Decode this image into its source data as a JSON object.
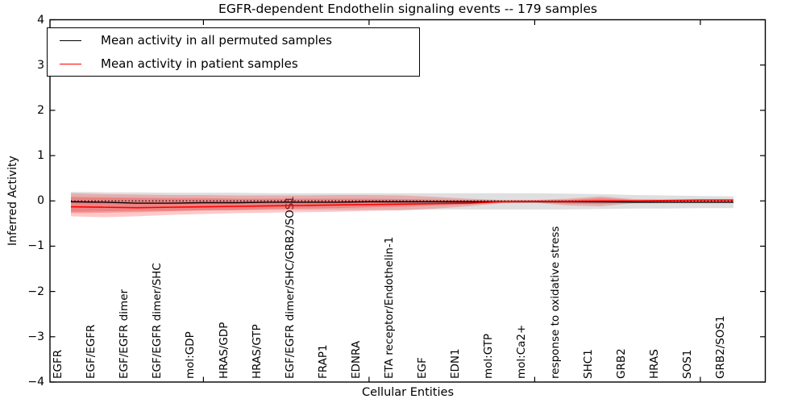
{
  "chart_data": {
    "type": "line",
    "title": "EGFR-dependent Endothelin signaling events -- 179 samples",
    "xlabel": "Cellular Entities",
    "ylabel": "Inferred Activity",
    "ylim": [
      -4,
      4
    ],
    "yticks": [
      -4,
      -3,
      -2,
      -1,
      0,
      1,
      2,
      3,
      4
    ],
    "grid": false,
    "legend_position": "upper-left",
    "xticks_shown_at": [
      4,
      9,
      14,
      19
    ],
    "categories": [
      "EGFR",
      "EGF/EGFR",
      "EGF/EGFR dimer",
      "EGF/EGFR dimer/SHC",
      "mol:GDP",
      "HRAS/GDP",
      "HRAS/GTP",
      "EGF/EGFR dimer/SHC/GRB2/SOS1",
      "FRAP1",
      "EDNRA",
      "ETA receptor/Endothelin-1",
      "EGF",
      "EDN1",
      "mol:GTP",
      "mol:Ca2+",
      "response to oxidative stress",
      "SHC1",
      "GRB2",
      "HRAS",
      "SOS1",
      "GRB2/SOS1"
    ],
    "series": [
      {
        "name": "Mean activity in all permuted samples",
        "color": "#000000",
        "values": [
          -0.02,
          -0.03,
          -0.05,
          -0.05,
          -0.04,
          -0.04,
          -0.03,
          -0.03,
          -0.03,
          -0.02,
          -0.02,
          -0.02,
          -0.02,
          -0.02,
          -0.02,
          -0.02,
          -0.02,
          -0.03,
          -0.03,
          -0.03,
          -0.03
        ]
      },
      {
        "name": "Mean activity in patient samples",
        "color": "#ff0000",
        "values": [
          -0.13,
          -0.14,
          -0.15,
          -0.14,
          -0.13,
          -0.12,
          -0.11,
          -0.1,
          -0.09,
          -0.08,
          -0.07,
          -0.06,
          -0.05,
          -0.02,
          -0.01,
          -0.01,
          0.0,
          0.0,
          0.01,
          0.02,
          0.02
        ]
      }
    ],
    "zero_line": {
      "y": 0,
      "style": "dotted",
      "color": "#000000"
    },
    "bands": [
      {
        "name": "permuted-samples-std",
        "color": "#8c8c8c",
        "opacity": 0.28,
        "upper": [
          0.2,
          0.19,
          0.19,
          0.18,
          0.18,
          0.18,
          0.17,
          0.17,
          0.17,
          0.17,
          0.17,
          0.17,
          0.17,
          0.17,
          0.17,
          0.16,
          0.15,
          0.13,
          0.12,
          0.11,
          0.1
        ],
        "lower": [
          -0.24,
          -0.23,
          -0.22,
          -0.22,
          -0.21,
          -0.21,
          -0.2,
          -0.2,
          -0.2,
          -0.2,
          -0.2,
          -0.19,
          -0.19,
          -0.19,
          -0.19,
          -0.19,
          -0.18,
          -0.17,
          -0.17,
          -0.16,
          -0.16
        ]
      },
      {
        "name": "patient-samples-std-outer",
        "color": "#ff0000",
        "opacity": 0.21,
        "upper": [
          0.17,
          0.15,
          0.14,
          0.13,
          0.13,
          0.12,
          0.12,
          0.12,
          0.13,
          0.13,
          0.12,
          0.09,
          0.05,
          0.02,
          0.02,
          0.05,
          0.1,
          0.04,
          0.03,
          0.03,
          0.03
        ],
        "lower": [
          -0.34,
          -0.36,
          -0.34,
          -0.31,
          -0.29,
          -0.27,
          -0.26,
          -0.25,
          -0.24,
          -0.22,
          -0.21,
          -0.17,
          -0.12,
          -0.05,
          -0.04,
          -0.1,
          -0.12,
          -0.05,
          -0.04,
          -0.04,
          -0.04
        ]
      },
      {
        "name": "patient-samples-std-inner",
        "color": "#ff0000",
        "opacity": 0.24,
        "upper": [
          0.09,
          0.08,
          0.07,
          0.06,
          0.06,
          0.05,
          0.05,
          0.05,
          0.05,
          0.05,
          0.04,
          0.03,
          0.02,
          0.01,
          0.01,
          0.02,
          0.06,
          0.02,
          0.01,
          0.01,
          0.01
        ],
        "lower": [
          -0.27,
          -0.26,
          -0.25,
          -0.23,
          -0.21,
          -0.2,
          -0.18,
          -0.17,
          -0.16,
          -0.14,
          -0.13,
          -0.1,
          -0.08,
          -0.03,
          -0.03,
          -0.06,
          -0.07,
          -0.03,
          -0.02,
          -0.02,
          -0.02
        ]
      }
    ],
    "legend": {
      "entries": [
        {
          "label": "Mean activity in all permuted samples",
          "color": "#000000"
        },
        {
          "label": "Mean activity in patient samples",
          "color": "#ff0000"
        }
      ]
    }
  }
}
